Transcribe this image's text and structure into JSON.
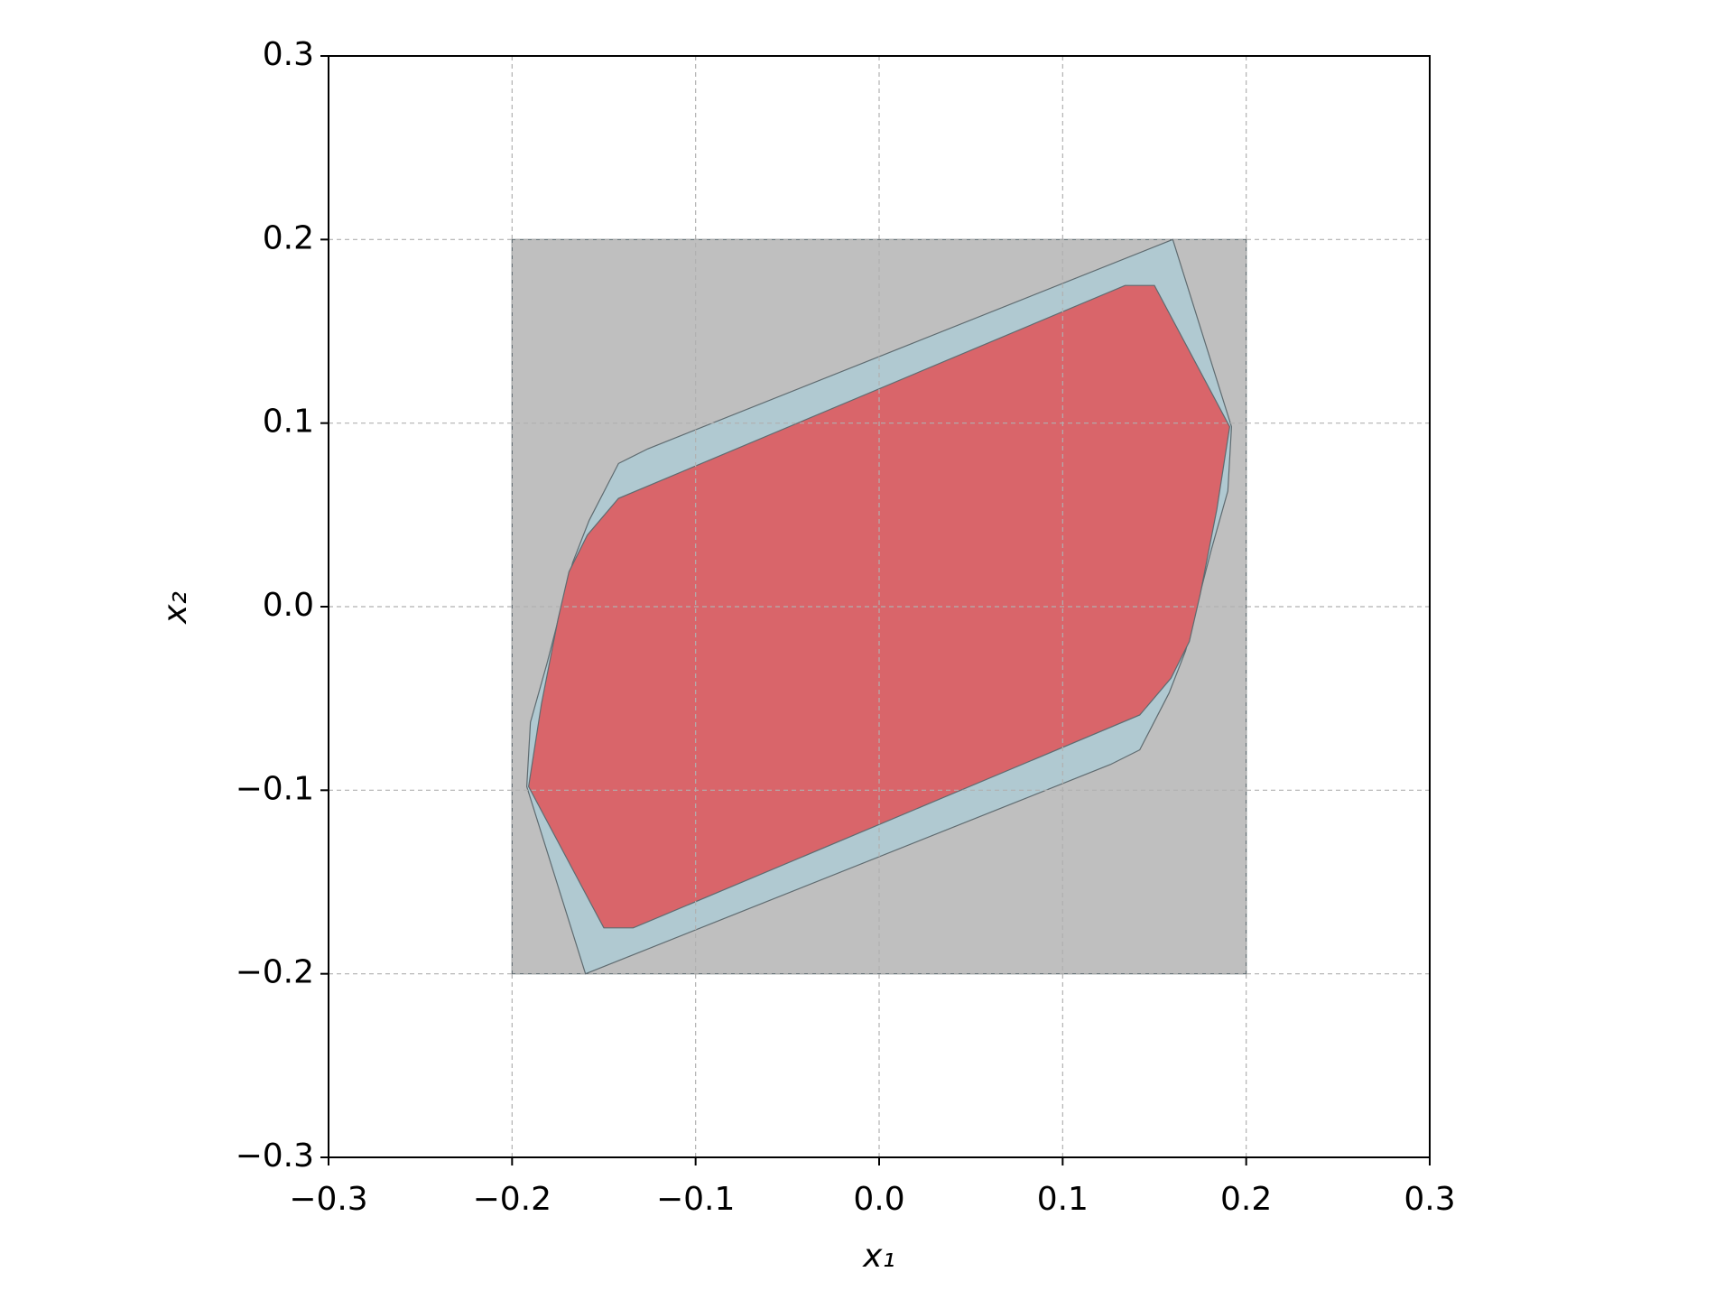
{
  "chart_data": {
    "type": "polygon",
    "xlabel": "x₁",
    "ylabel": "x₂",
    "xlim": [
      -0.3,
      0.3
    ],
    "ylim": [
      -0.3,
      0.3
    ],
    "xticks": [
      {
        "value": -0.3,
        "label": "−0.3"
      },
      {
        "value": -0.2,
        "label": "−0.2"
      },
      {
        "value": -0.1,
        "label": "−0.1"
      },
      {
        "value": 0,
        "label": "0.0"
      },
      0.1,
      0.2,
      0.3
    ],
    "yticks": [
      {
        "value": -0.3,
        "label": "−0.3"
      },
      {
        "value": -0.2,
        "label": "−0.2"
      },
      {
        "value": -0.1,
        "label": "−0.1"
      },
      {
        "value": 0,
        "label": "0.0"
      },
      0.1,
      0.2,
      0.3
    ],
    "grid": true,
    "series": [
      {
        "color": "#bfbfbf",
        "x": [
          -0.2,
          0.2,
          0.2,
          -0.2
        ],
        "y": [
          -0.2,
          -0.2,
          0.2,
          0.2
        ]
      },
      {
        "color": "#b0c9d1",
        "x": [
          0.16,
          0.192,
          0.19,
          0.181,
          0.173,
          0.167,
          0.158,
          0.142,
          0.126,
          -0.16,
          -0.192,
          -0.19,
          -0.181,
          -0.173,
          -0.167,
          -0.158,
          -0.142,
          -0.126
        ],
        "y": [
          0.2,
          0.098,
          0.063,
          0.031,
          0.0,
          -0.024,
          -0.047,
          -0.078,
          -0.086,
          -0.2,
          -0.098,
          -0.063,
          -0.031,
          0.0,
          0.024,
          0.047,
          0.078,
          0.086
        ]
      },
      {
        "color": "#d9656a",
        "x": [
          0.134,
          0.15,
          0.191,
          0.184,
          0.175,
          0.169,
          0.159,
          0.142,
          -0.134,
          -0.15,
          -0.191,
          -0.184,
          -0.175,
          -0.169,
          -0.159,
          -0.142
        ],
        "y": [
          0.175,
          0.175,
          0.098,
          0.053,
          0.007,
          -0.019,
          -0.039,
          -0.059,
          -0.175,
          -0.175,
          -0.098,
          -0.053,
          -0.007,
          0.019,
          0.039,
          0.059
        ]
      }
    ]
  }
}
